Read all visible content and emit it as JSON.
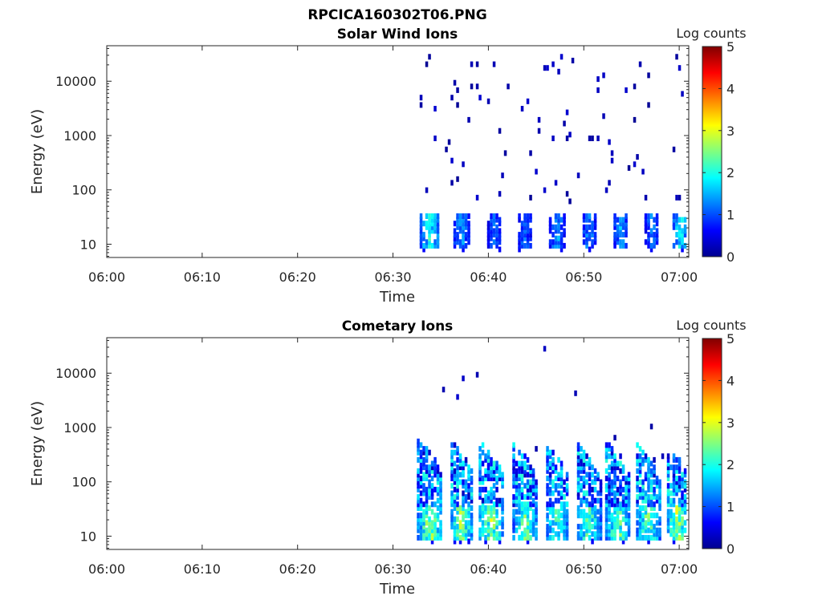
{
  "figure": {
    "title": "RPCICA160302T06.PNG"
  },
  "colorbar": {
    "label": "Log counts",
    "ticks": [
      "0",
      "1",
      "2",
      "3",
      "4",
      "5"
    ],
    "range": [
      0,
      5
    ],
    "colormap": "jet"
  },
  "chart_data": [
    {
      "type": "heatmap",
      "title": "Solar Wind Ions",
      "xlabel": "Time",
      "ylabel": "Energy (eV)",
      "xticks": [
        "06:00",
        "06:10",
        "06:20",
        "06:30",
        "06:40",
        "06:50",
        "07:00"
      ],
      "yticks": [
        "10",
        "100",
        "1000",
        "10000"
      ],
      "xlim": [
        "06:00",
        "07:01"
      ],
      "ylim_eV": [
        5.7,
        45000
      ],
      "yscale": "log",
      "data_start": "06:32:30",
      "bursts": [
        {
          "start": "06:32:40",
          "end": "06:34:50",
          "peak_eV": 22,
          "peak_log_counts": 2.4
        },
        {
          "start": "06:36:10",
          "end": "06:37:50",
          "peak_eV": 22,
          "peak_log_counts": 1.8
        },
        {
          "start": "06:39:50",
          "end": "06:41:10",
          "peak_eV": 22,
          "peak_log_counts": 1.5
        },
        {
          "start": "06:42:50",
          "end": "06:44:30",
          "peak_eV": 22,
          "peak_log_counts": 1.4
        },
        {
          "start": "06:46:20",
          "end": "06:47:50",
          "peak_eV": 22,
          "peak_log_counts": 1.8
        },
        {
          "start": "06:49:40",
          "end": "06:51:10",
          "peak_eV": 22,
          "peak_log_counts": 1.7
        },
        {
          "start": "06:53:00",
          "end": "06:54:30",
          "peak_eV": 22,
          "peak_log_counts": 1.8
        },
        {
          "start": "06:56:20",
          "end": "06:57:40",
          "peak_eV": 22,
          "peak_log_counts": 1.6
        },
        {
          "start": "06:59:10",
          "end": "07:00:50",
          "peak_eV": 22,
          "peak_log_counts": 2.3
        }
      ]
    },
    {
      "type": "heatmap",
      "title": "Cometary Ions",
      "xlabel": "Time",
      "ylabel": "Energy (eV)",
      "xticks": [
        "06:00",
        "06:10",
        "06:20",
        "06:30",
        "06:40",
        "06:50",
        "07:00"
      ],
      "yticks": [
        "10",
        "100",
        "1000",
        "10000"
      ],
      "xlim": [
        "06:00",
        "07:01"
      ],
      "ylim_eV": [
        5.7,
        45000
      ],
      "yscale": "log",
      "data_start": "06:32:30",
      "bursts": [
        {
          "start": "06:32:30",
          "end": "06:35:00",
          "peak_eV": 22,
          "peak_log_counts": 3.4,
          "max_eV": 600
        },
        {
          "start": "06:35:50",
          "end": "06:38:20",
          "peak_eV": 22,
          "peak_log_counts": 3.2,
          "max_eV": 600
        },
        {
          "start": "06:38:50",
          "end": "06:41:30",
          "peak_eV": 22,
          "peak_log_counts": 3.2,
          "max_eV": 550
        },
        {
          "start": "06:42:30",
          "end": "06:45:00",
          "peak_eV": 22,
          "peak_log_counts": 2.9,
          "max_eV": 500
        },
        {
          "start": "06:45:50",
          "end": "06:48:20",
          "peak_eV": 22,
          "peak_log_counts": 2.7,
          "max_eV": 500
        },
        {
          "start": "06:49:10",
          "end": "06:51:40",
          "peak_eV": 22,
          "peak_log_counts": 2.9,
          "max_eV": 500
        },
        {
          "start": "06:52:10",
          "end": "06:54:50",
          "peak_eV": 22,
          "peak_log_counts": 3.0,
          "max_eV": 550
        },
        {
          "start": "06:55:20",
          "end": "06:57:50",
          "peak_eV": 22,
          "peak_log_counts": 2.9,
          "max_eV": 500
        },
        {
          "start": "06:58:30",
          "end": "07:00:50",
          "peak_eV": 22,
          "peak_log_counts": 3.3,
          "max_eV": 500
        }
      ]
    }
  ]
}
